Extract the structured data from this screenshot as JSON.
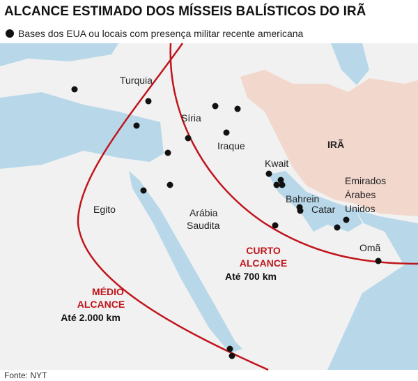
{
  "header": {
    "title": "ALCANCE ESTIMADO DOS MÍSSEIS BALÍSTICOS DO IRÃ",
    "legend": "Bases dos EUA ou locais com presença militar recente americana"
  },
  "map": {
    "countries": [
      [
        "Turquia"
      ],
      [
        "Síria"
      ],
      [
        "Iraque"
      ],
      [
        "Kwait"
      ],
      [
        "IRÃ"
      ],
      [
        "Bahrein"
      ],
      [
        "Catar"
      ],
      [
        "Emirados",
        "Árabes",
        "Unidos"
      ],
      [
        "Egito"
      ],
      [
        "Arábia",
        "Saudita"
      ],
      [
        "Omã"
      ]
    ],
    "ranges": [
      {
        "name": [
          "CURTO",
          "ALCANCE"
        ],
        "distance": "Até 700 km"
      },
      {
        "name": [
          "MÉDIO",
          "ALCANCE"
        ],
        "distance": "Até 2.000 km"
      }
    ]
  },
  "source": "Fonte: NYT"
}
